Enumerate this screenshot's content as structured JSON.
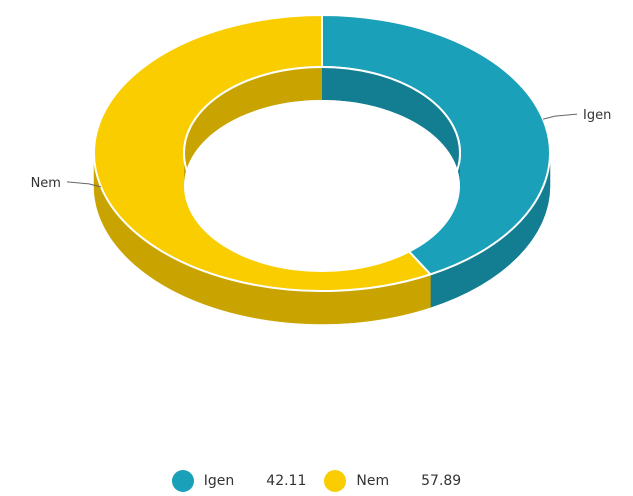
{
  "chart_data": {
    "type": "pie",
    "style": "3d-donut",
    "series": [
      {
        "name": "Igen",
        "value": 42.11,
        "color": "#1aa0b8",
        "side_color": "#137d91"
      },
      {
        "name": "Nem",
        "value": 57.89,
        "color": "#f9cd00",
        "side_color": "#c9a400"
      }
    ],
    "legend": {
      "position": "bottom"
    }
  }
}
